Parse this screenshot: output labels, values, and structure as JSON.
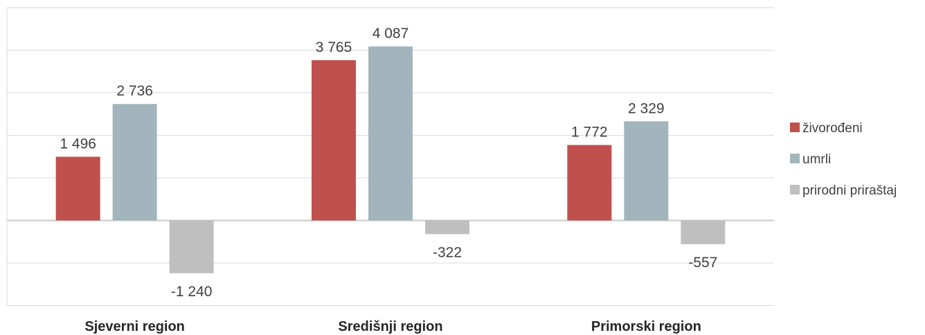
{
  "chart_data": {
    "type": "bar",
    "title": "",
    "xlabel": "",
    "ylabel": "",
    "categories": [
      "Sjeverni region",
      "Središnji region",
      "Primorski region"
    ],
    "series": [
      {
        "name": "živorođeni",
        "color": "#c0504d",
        "values": [
          1496,
          3765,
          1772
        ],
        "labels": [
          "1 496",
          "3 765",
          "1 772"
        ]
      },
      {
        "name": "umrli",
        "color": "#a2b5bc",
        "values": [
          2736,
          4087,
          2329
        ],
        "labels": [
          "2 736",
          "4 087",
          "2 329"
        ]
      },
      {
        "name": "prirodni priraštaj",
        "color": "#bfbfbf",
        "values": [
          -1240,
          -322,
          -557
        ],
        "labels": [
          "-1 240",
          "-322",
          "-557"
        ]
      }
    ],
    "ylim": [
      -2000,
      5000
    ],
    "grid": true,
    "legend_position": "right"
  }
}
